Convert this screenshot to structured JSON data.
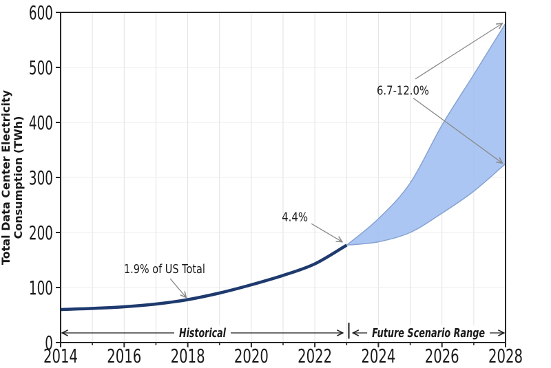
{
  "chart_data": {
    "type": "area",
    "title": "",
    "xlabel": "",
    "ylabel_lines": [
      "Total Data Center Electricity",
      "Consumption (TWh)"
    ],
    "xlim": [
      2014,
      2028
    ],
    "ylim": [
      0,
      600
    ],
    "x_major_ticks": [
      2014,
      2016,
      2018,
      2020,
      2022,
      2024,
      2026,
      2028
    ],
    "x_minor_ticks": [
      2015,
      2017,
      2019,
      2021,
      2023,
      2025,
      2027
    ],
    "y_ticks": [
      0,
      100,
      200,
      300,
      400,
      500,
      600
    ],
    "grid": "on",
    "legend_position": "none",
    "series": [
      {
        "name": "Historical",
        "type": "line",
        "color": "#1e3a6e",
        "x": [
          2014,
          2015,
          2016,
          2017,
          2018,
          2019,
          2020,
          2021,
          2022,
          2023
        ],
        "values": [
          60,
          62,
          65,
          70,
          78,
          90,
          105,
          122,
          143,
          177
        ]
      },
      {
        "name": "Future Scenario Range",
        "type": "band",
        "fill": "#a3c0f2",
        "edge": "#86a2d2",
        "x": [
          2023,
          2024,
          2025,
          2026,
          2027,
          2028
        ],
        "upper": [
          177,
          225,
          290,
          395,
          487,
          580
        ],
        "lower": [
          177,
          183,
          200,
          235,
          275,
          325
        ]
      }
    ],
    "annotations": [
      {
        "text": "1.9% of US Total",
        "tx": 2017.27,
        "ty": 134,
        "text_length": 118,
        "arrows": [
          {
            "x1": 2017.45,
            "y1": 116,
            "x2": 2017.95,
            "y2": 82
          }
        ]
      },
      {
        "text": "4.4%",
        "tx": 2021.37,
        "ty": 228,
        "text_length": 38,
        "arrows": [
          {
            "x1": 2021.89,
            "y1": 216,
            "x2": 2022.86,
            "y2": 183
          }
        ]
      },
      {
        "text": "6.7-12.0%",
        "tx": 2024.77,
        "ty": 458,
        "text_length": 76,
        "arrows": [
          {
            "x1": 2025.16,
            "y1": 479,
            "x2": 2027.9,
            "y2": 580
          },
          {
            "x1": 2025.1,
            "y1": 444,
            "x2": 2027.9,
            "y2": 326
          }
        ]
      }
    ],
    "range_markers": {
      "historical": {
        "label": "Historical",
        "from": 2014.05,
        "to": 2022.88,
        "y": 17.5,
        "text_length": 68
      },
      "future": {
        "label": "Future Scenario Range",
        "from": 2023.2,
        "to": 2027.95,
        "y": 17.5,
        "text_length": 164
      },
      "divider": {
        "x": 2023.07,
        "y1": 7,
        "y2": 36
      }
    },
    "colors": {
      "line": "#1e3a6e",
      "band_fill": "#a3c0f2",
      "band_edge": "#86a2d2",
      "annotation_arrow": "#8a8a8a",
      "range_arrow": "#1a1a1a",
      "spine": "#262626",
      "grid_vertical": "#e2e2e2",
      "grid_horizontal": "#ececec"
    }
  }
}
